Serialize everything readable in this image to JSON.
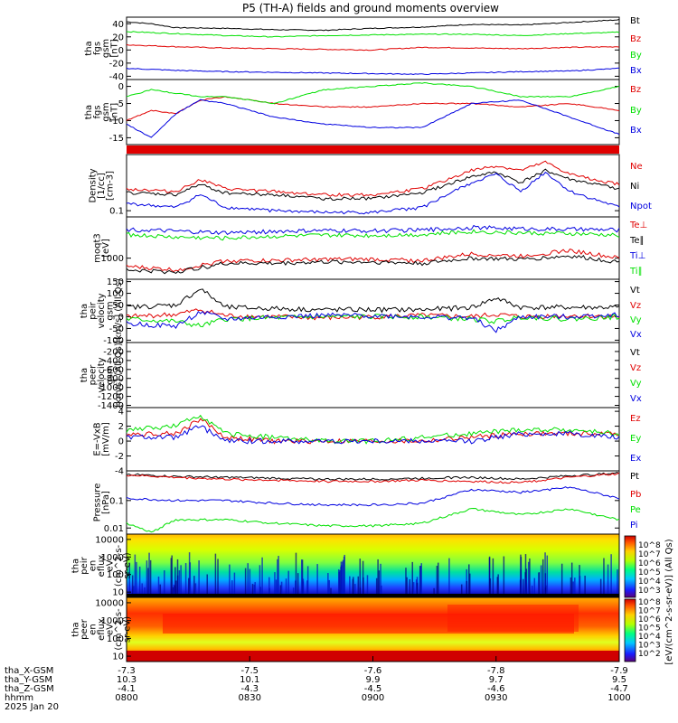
{
  "title": "P5 (TH-A) fields and ground moments overview",
  "colors": {
    "black": "#000000",
    "red": "#e00000",
    "green": "#00e000",
    "blue": "#0000e0"
  },
  "chart_data": [
    {
      "type": "line",
      "panel": "fgs_gsm_1",
      "ylabel": [
        "tha",
        "fgs",
        "gsm",
        "[nT]"
      ],
      "ylim": [
        -45,
        50
      ],
      "yticks": [
        40,
        20,
        0,
        -20,
        -40
      ],
      "series": [
        {
          "name": "Bt",
          "color": "#000000",
          "x": [
            0,
            0.05,
            0.1,
            0.2,
            0.3,
            0.4,
            0.5,
            0.6,
            0.7,
            0.8,
            0.9,
            1.0
          ],
          "values": [
            43,
            40,
            34,
            33,
            31,
            30,
            33,
            35,
            39,
            38,
            42,
            46
          ]
        },
        {
          "name": "Bz",
          "color": "#e00000",
          "x": [
            0,
            0.1,
            0.2,
            0.3,
            0.4,
            0.5,
            0.6,
            0.7,
            0.8,
            0.9,
            1.0
          ],
          "values": [
            8,
            5,
            3,
            2,
            1,
            0,
            4,
            3,
            2,
            4,
            5
          ]
        },
        {
          "name": "By",
          "color": "#00e000",
          "x": [
            0,
            0.1,
            0.2,
            0.3,
            0.4,
            0.5,
            0.6,
            0.7,
            0.8,
            0.9,
            1.0
          ],
          "values": [
            28,
            25,
            22,
            20,
            22,
            23,
            24,
            24,
            22,
            25,
            27
          ]
        },
        {
          "name": "Bx",
          "color": "#0000e0",
          "x": [
            0,
            0.1,
            0.2,
            0.3,
            0.4,
            0.5,
            0.6,
            0.7,
            0.8,
            0.9,
            1.0
          ],
          "values": [
            -28,
            -31,
            -33,
            -34,
            -35,
            -36,
            -37,
            -35,
            -33,
            -32,
            -28
          ]
        }
      ]
    },
    {
      "type": "line",
      "panel": "fgs_gsm_2",
      "ylabel": [
        "tha",
        "fgs",
        "gsm",
        "[nT]"
      ],
      "ylim": [
        -17,
        2
      ],
      "yticks": [
        0,
        -5,
        -10,
        -15
      ],
      "series": [
        {
          "name": "Bz",
          "color": "#e00000",
          "x": [
            0,
            0.05,
            0.1,
            0.15,
            0.2,
            0.3,
            0.4,
            0.5,
            0.6,
            0.7,
            0.8,
            0.9,
            1.0
          ],
          "values": [
            -10,
            -7,
            -8,
            -4,
            -3,
            -5,
            -6,
            -6,
            -5,
            -5,
            -6,
            -5,
            -7
          ]
        },
        {
          "name": "By",
          "color": "#00e000",
          "x": [
            0,
            0.05,
            0.1,
            0.15,
            0.2,
            0.3,
            0.4,
            0.5,
            0.6,
            0.7,
            0.8,
            0.9,
            1.0
          ],
          "values": [
            -3,
            -1,
            -2,
            -3,
            -3,
            -5,
            -1,
            0,
            1,
            0,
            -3,
            -3,
            0
          ]
        },
        {
          "name": "Bx",
          "color": "#0000e0",
          "x": [
            0,
            0.05,
            0.1,
            0.15,
            0.2,
            0.3,
            0.4,
            0.5,
            0.6,
            0.7,
            0.8,
            0.9,
            1.0
          ],
          "values": [
            -11,
            -15,
            -8,
            -4,
            -5,
            -9,
            -11,
            -12,
            -12,
            -5,
            -4,
            -9,
            -14
          ]
        }
      ]
    },
    {
      "type": "line",
      "panel": "density",
      "ylabel": [
        "Density",
        "[1/cc]",
        "[cm-3]"
      ],
      "yscale": "log",
      "ylim": [
        0.07,
        2.5
      ],
      "yticks": [
        0.1
      ],
      "series": [
        {
          "name": "Ne",
          "color": "#e00000",
          "x": [
            0,
            0.1,
            0.15,
            0.2,
            0.3,
            0.4,
            0.5,
            0.6,
            0.7,
            0.75,
            0.8,
            0.85,
            0.9,
            1.0
          ],
          "values": [
            0.35,
            0.3,
            0.6,
            0.35,
            0.3,
            0.25,
            0.25,
            0.35,
            1.0,
            1.3,
            1.0,
            1.6,
            0.8,
            0.45
          ]
        },
        {
          "name": "Ni",
          "color": "#000000",
          "x": [
            0,
            0.1,
            0.15,
            0.2,
            0.3,
            0.4,
            0.5,
            0.6,
            0.7,
            0.75,
            0.8,
            0.85,
            0.9,
            1.0
          ],
          "values": [
            0.28,
            0.25,
            0.45,
            0.28,
            0.25,
            0.2,
            0.2,
            0.28,
            0.7,
            0.9,
            0.5,
            1.0,
            0.6,
            0.35
          ]
        },
        {
          "name": "Npot",
          "color": "#0000e0",
          "x": [
            0,
            0.1,
            0.15,
            0.2,
            0.3,
            0.4,
            0.5,
            0.6,
            0.7,
            0.75,
            0.8,
            0.85,
            0.9,
            1.0
          ],
          "values": [
            0.15,
            0.12,
            0.25,
            0.12,
            0.1,
            0.09,
            0.09,
            0.12,
            0.5,
            0.8,
            0.3,
            0.9,
            0.3,
            0.12
          ]
        }
      ]
    },
    {
      "type": "line",
      "panel": "temperature",
      "ylabel": [
        "moqt3",
        "[eV]"
      ],
      "yscale": "log",
      "ylim": [
        400,
        6000
      ],
      "yticks": [
        1000
      ],
      "series": [
        {
          "name": "Te⊥",
          "color": "#e00000",
          "x": [
            0,
            0.1,
            0.2,
            0.3,
            0.4,
            0.5,
            0.6,
            0.7,
            0.8,
            0.9,
            1.0
          ],
          "values": [
            700,
            600,
            900,
            900,
            950,
            950,
            900,
            1200,
            1100,
            1400,
            1000
          ]
        },
        {
          "name": "Te∥",
          "color": "#000000",
          "x": [
            0,
            0.1,
            0.2,
            0.3,
            0.4,
            0.5,
            0.6,
            0.7,
            0.8,
            0.9,
            1.0
          ],
          "values": [
            600,
            550,
            800,
            800,
            850,
            850,
            800,
            1000,
            950,
            1100,
            850
          ]
        },
        {
          "name": "Ti⊥",
          "color": "#0000e0",
          "x": [
            0,
            0.1,
            0.2,
            0.3,
            0.4,
            0.5,
            0.6,
            0.7,
            0.8,
            0.9,
            1.0
          ],
          "values": [
            3500,
            3200,
            3000,
            3200,
            3300,
            3300,
            3400,
            3800,
            3600,
            3500,
            3400
          ]
        },
        {
          "name": "Ti∥",
          "color": "#00e000",
          "x": [
            0,
            0.1,
            0.2,
            0.3,
            0.4,
            0.5,
            0.6,
            0.7,
            0.8,
            0.9,
            1.0
          ],
          "values": [
            2800,
            2500,
            2400,
            2600,
            2700,
            2700,
            2800,
            3200,
            3000,
            2900,
            2700
          ]
        }
      ]
    },
    {
      "type": "line",
      "panel": "peir_velocity",
      "ylabel": [
        "tha",
        "peir",
        "velocity",
        "gsm",
        "[km/s] (All Qs)"
      ],
      "ylim": [
        -110,
        160
      ],
      "yticks": [
        150,
        100,
        50,
        0,
        -50,
        -100
      ],
      "series": [
        {
          "name": "Vt",
          "color": "#000000",
          "x": [
            0,
            0.1,
            0.15,
            0.2,
            0.3,
            0.4,
            0.5,
            0.6,
            0.7,
            0.75,
            0.8,
            0.9,
            1.0
          ],
          "values": [
            40,
            50,
            120,
            40,
            35,
            30,
            30,
            30,
            40,
            80,
            40,
            40,
            40
          ]
        },
        {
          "name": "Vz",
          "color": "#e00000",
          "x": [
            0,
            0.1,
            0.15,
            0.2,
            0.3,
            0.4,
            0.5,
            0.6,
            0.7,
            0.75,
            0.8,
            0.9,
            1.0
          ],
          "values": [
            0,
            10,
            30,
            5,
            0,
            -5,
            0,
            5,
            0,
            10,
            0,
            5,
            0
          ]
        },
        {
          "name": "Vy",
          "color": "#00e000",
          "x": [
            0,
            0.1,
            0.15,
            0.2,
            0.3,
            0.4,
            0.5,
            0.6,
            0.7,
            0.75,
            0.8,
            0.9,
            1.0
          ],
          "values": [
            -10,
            -20,
            -40,
            -10,
            -5,
            0,
            0,
            0,
            -10,
            -20,
            0,
            -10,
            0
          ]
        },
        {
          "name": "Vx",
          "color": "#0000e0",
          "x": [
            0,
            0.1,
            0.15,
            0.2,
            0.3,
            0.4,
            0.5,
            0.6,
            0.7,
            0.75,
            0.8,
            0.9,
            1.0
          ],
          "values": [
            -30,
            -40,
            20,
            -10,
            0,
            5,
            5,
            0,
            -5,
            -60,
            0,
            0,
            10
          ]
        }
      ]
    },
    {
      "type": "line",
      "panel": "peer_velocity",
      "ylabel": [
        "tha",
        "peer",
        "velocity",
        "gsm",
        "[km/s] (All Qs)"
      ],
      "ylim": [
        -1450,
        0
      ],
      "yticks": [
        -200,
        -400,
        -600,
        -800,
        -1000,
        -1200,
        -1400
      ],
      "series": [
        {
          "name": "Vt",
          "color": "#000000",
          "x": [],
          "values": []
        },
        {
          "name": "Vz",
          "color": "#e00000",
          "x": [],
          "values": []
        },
        {
          "name": "Vy",
          "color": "#00e000",
          "x": [],
          "values": []
        },
        {
          "name": "Vx",
          "color": "#0000e0",
          "x": [],
          "values": []
        }
      ]
    },
    {
      "type": "line",
      "panel": "efield",
      "ylabel": [
        "E=-VxB",
        "[mV/m]"
      ],
      "ylim": [
        -4,
        4.5
      ],
      "yticks": [
        4,
        2,
        0,
        -2,
        -4
      ],
      "series": [
        {
          "name": "Ez",
          "color": "#e00000",
          "x": [
            0,
            0.1,
            0.15,
            0.2,
            0.3,
            0.4,
            0.5,
            0.6,
            0.7,
            0.8,
            0.9,
            1.0
          ],
          "values": [
            1,
            1,
            3,
            0.5,
            0,
            0,
            0,
            0,
            0.5,
            1,
            1,
            1
          ]
        },
        {
          "name": "Ey",
          "color": "#00e000",
          "x": [
            0,
            0.1,
            0.15,
            0.2,
            0.3,
            0.4,
            0.5,
            0.6,
            0.7,
            0.8,
            0.9,
            1.0
          ],
          "values": [
            1.5,
            2,
            3.5,
            1,
            0.5,
            0,
            0,
            0.5,
            1,
            1.5,
            1.5,
            1
          ]
        },
        {
          "name": "Ex",
          "color": "#0000e0",
          "x": [
            0,
            0.1,
            0.15,
            0.2,
            0.3,
            0.4,
            0.5,
            0.6,
            0.7,
            0.8,
            0.9,
            1.0
          ],
          "values": [
            0.5,
            0.5,
            2,
            0,
            0,
            0,
            0,
            0,
            0,
            1,
            1,
            0.5
          ]
        }
      ]
    },
    {
      "type": "line",
      "panel": "pressure",
      "ylabel": [
        "Pressure",
        "[nPa]"
      ],
      "yscale": "log",
      "ylim": [
        0.006,
        1.2
      ],
      "yticks": [
        0.1,
        0.01
      ],
      "series": [
        {
          "name": "Pt",
          "color": "#000000",
          "x": [
            0,
            0.1,
            0.2,
            0.3,
            0.4,
            0.5,
            0.6,
            0.7,
            0.8,
            0.9,
            1.0
          ],
          "values": [
            0.9,
            0.75,
            0.7,
            0.65,
            0.6,
            0.6,
            0.65,
            0.7,
            0.6,
            0.8,
            1.0
          ]
        },
        {
          "name": "Pb",
          "color": "#e00000",
          "x": [
            0,
            0.1,
            0.2,
            0.3,
            0.4,
            0.5,
            0.6,
            0.7,
            0.8,
            0.9,
            1.0
          ],
          "values": [
            0.85,
            0.7,
            0.6,
            0.55,
            0.5,
            0.5,
            0.55,
            0.5,
            0.45,
            0.7,
            0.95
          ]
        },
        {
          "name": "Pe",
          "color": "#00e000",
          "x": [
            0,
            0.05,
            0.1,
            0.2,
            0.3,
            0.4,
            0.5,
            0.6,
            0.7,
            0.8,
            0.9,
            1.0
          ],
          "values": [
            0.015,
            0.007,
            0.02,
            0.02,
            0.015,
            0.012,
            0.012,
            0.015,
            0.05,
            0.03,
            0.05,
            0.02
          ]
        },
        {
          "name": "Pi",
          "color": "#0000e0",
          "x": [
            0,
            0.1,
            0.2,
            0.3,
            0.4,
            0.5,
            0.6,
            0.7,
            0.8,
            0.9,
            1.0
          ],
          "values": [
            0.12,
            0.1,
            0.1,
            0.08,
            0.07,
            0.07,
            0.08,
            0.25,
            0.2,
            0.3,
            0.12
          ]
        }
      ]
    },
    {
      "type": "heatmap",
      "panel": "peir_en_eflux",
      "ylabel": [
        "tha",
        "peir",
        "en",
        "eflux",
        "eV",
        "(cm^2-s-",
        "sr-eV)"
      ],
      "yscale": "log",
      "ylim": [
        5,
        20000
      ],
      "yticks": [
        10000,
        1000,
        100,
        10
      ]
    },
    {
      "type": "heatmap",
      "panel": "peer_en_eflux",
      "ylabel": [
        "tha",
        "peer",
        "en",
        "eflux",
        "eV",
        "(cm^2-s-",
        "sr-eV)"
      ],
      "yscale": "log",
      "ylim": [
        5,
        20000
      ],
      "yticks": [
        10000,
        1000,
        100,
        10
      ]
    }
  ],
  "colorbar": {
    "label": "[eV/(cm^2-s-sr-eV)] (All Qs)",
    "upper_ticks": [
      "10^8",
      "10^7",
      "10^6",
      "10^5",
      "10^4",
      "10^3"
    ],
    "lower_ticks": [
      "10^8",
      "10^7",
      "10^6",
      "10^5",
      "10^4",
      "10^3",
      "10^2"
    ]
  },
  "xaxis": {
    "labels": [
      "tha_X-GSM",
      "tha_Y-GSM",
      "tha_Z-GSM",
      "hhmm",
      "2025 Jan 20"
    ],
    "columns": [
      {
        "x": "-7.3",
        "y": "10.3",
        "z": "-4.1",
        "time": "0800"
      },
      {
        "x": "-7.5",
        "y": "10.1",
        "z": "-4.3",
        "time": "0830"
      },
      {
        "x": "-7.6",
        "y": "9.9",
        "z": "-4.5",
        "time": "0900"
      },
      {
        "x": "-7.8",
        "y": "9.7",
        "z": "-4.6",
        "time": "0930"
      },
      {
        "x": "-7.9",
        "y": "9.5",
        "z": "-4.7",
        "time": "1000"
      }
    ]
  }
}
